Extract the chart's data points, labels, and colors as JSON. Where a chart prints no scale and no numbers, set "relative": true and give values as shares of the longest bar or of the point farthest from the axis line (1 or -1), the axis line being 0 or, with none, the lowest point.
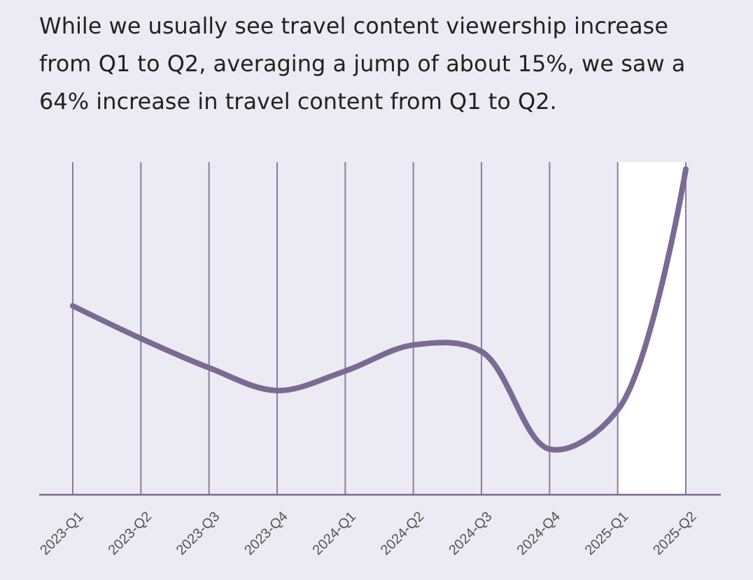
{
  "chart_data": {
    "type": "line",
    "title": "While we usually see travel content viewership increase from Q1 to Q2, averaging a jump of about 15%, we saw a 64% increase in travel content from Q1 to Q2.",
    "categories": [
      "2023-Q1",
      "2023-Q2",
      "2023-Q3",
      "2023-Q4",
      "2024-Q1",
      "2024-Q2",
      "2024-Q3",
      "2024-Q4",
      "2025-Q1",
      "2025-Q2"
    ],
    "relative": true,
    "series": [
      {
        "color": "#7b6a93",
        "values": [
          0.58,
          0.48,
          0.39,
          0.32,
          0.38,
          0.46,
          0.44,
          0.14,
          0.26,
          1
        ]
      }
    ],
    "bands": [
      {
        "axis": "x",
        "from": "2025-Q1",
        "to": "2025-Q2",
        "color": "#ffffff"
      }
    ],
    "grid": "x",
    "marker": "none",
    "line_style": "solid"
  }
}
